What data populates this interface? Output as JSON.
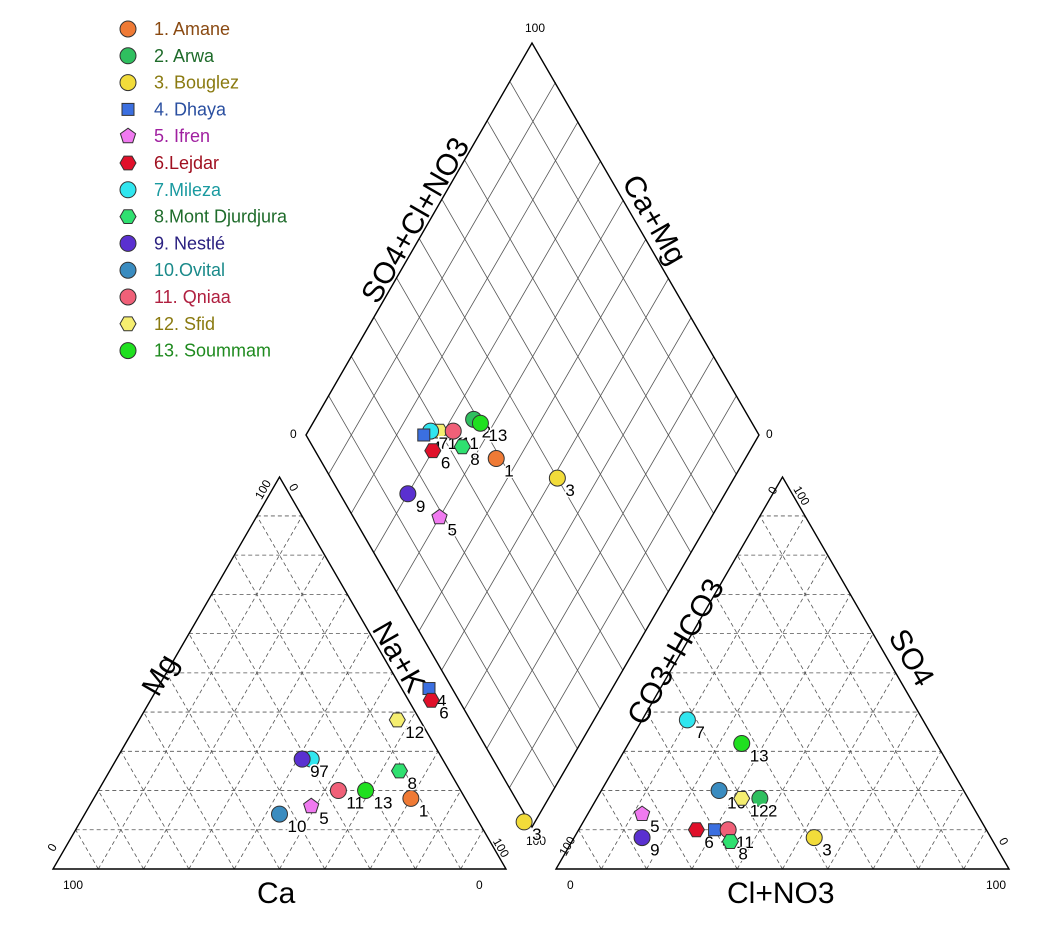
{
  "chart_data": {
    "type": "piper",
    "axis_titles": {
      "cation_bottom": "Ca",
      "cation_left": "Mg",
      "cation_right": "Na+K",
      "anion_bottom": "Cl+NO3",
      "anion_left": "CO3+HCO3",
      "anion_right": "SO4",
      "diamond_left": "SO4+Cl+NO3",
      "diamond_right": "Ca+Mg"
    },
    "tick_labels": {
      "max": "100",
      "min": "0"
    },
    "legend": [
      {
        "label": "1. Amane",
        "marker": "circle",
        "color": "#ef7a35",
        "text_color": "#8a4a12"
      },
      {
        "label": "2. Arwa",
        "marker": "circle",
        "color": "#2fbf5f",
        "text_color": "#1e6b2a"
      },
      {
        "label": "3. Bouglez",
        "marker": "circle",
        "color": "#f2dc3a",
        "text_color": "#8a7a10"
      },
      {
        "label": "4. Dhaya",
        "marker": "square",
        "color": "#3b6fe0",
        "text_color": "#2a4fa0"
      },
      {
        "label": "5. Ifren",
        "marker": "pentagon",
        "color": "#f07af0",
        "text_color": "#a020a0"
      },
      {
        "label": "6.Lejdar",
        "marker": "hexagon",
        "color": "#e0102a",
        "text_color": "#a01020"
      },
      {
        "label": "7.Mileza",
        "marker": "circle",
        "color": "#30e6ef",
        "text_color": "#1a9aa0"
      },
      {
        "label": "8.Mont Djurdjura",
        "marker": "hexagon",
        "color": "#2fe070",
        "text_color": "#1e6b2a"
      },
      {
        "label": "9. Nestlé",
        "marker": "circle",
        "color": "#5a30d0",
        "text_color": "#2a2080"
      },
      {
        "label": "10.Ovital",
        "marker": "circle",
        "color": "#3a8cc0",
        "text_color": "#1a8a8a"
      },
      {
        "label": "11. Qniaa",
        "marker": "circle",
        "color": "#f06078",
        "text_color": "#b02040"
      },
      {
        "label": "12. Sfid",
        "marker": "hexagon",
        "color": "#f5ee70",
        "text_color": "#8a7a10"
      },
      {
        "label": "13. Soummam",
        "marker": "circle",
        "color": "#20e020",
        "text_color": "#1e8a1e"
      }
    ],
    "cation_points": [
      {
        "label": "1",
        "Ca": 30,
        "Mg": 18,
        "NaK": 52
      },
      {
        "label": "3",
        "Ca": 2,
        "Mg": 12,
        "NaK": 86
      },
      {
        "label": "4",
        "Ca": 40,
        "Mg": 46,
        "NaK": 14
      },
      {
        "label": "6",
        "Ca": 38,
        "Mg": 43,
        "NaK": 19
      },
      {
        "label": "12",
        "Ca": 43,
        "Mg": 38,
        "NaK": 19
      },
      {
        "label": "7",
        "Ca": 57,
        "Mg": 28,
        "NaK": 15
      },
      {
        "label": "9",
        "Ca": 59,
        "Mg": 28,
        "NaK": 13
      },
      {
        "label": "8",
        "Ca": 36,
        "Mg": 25,
        "NaK": 39
      },
      {
        "label": "11",
        "Ca": 47,
        "Mg": 20,
        "NaK": 33
      },
      {
        "label": "13",
        "Ca": 41,
        "Mg": 20,
        "NaK": 39
      },
      {
        "label": "10",
        "Ca": 57,
        "Mg": 14,
        "NaK": 29
      },
      {
        "label": "5",
        "Ca": 51,
        "Mg": 16,
        "NaK": 33
      }
    ],
    "anion_points": [
      {
        "label": "7",
        "Cl": 10,
        "SO4": 38,
        "HCO3": 52
      },
      {
        "label": "13",
        "Cl": 25,
        "SO4": 32,
        "HCO3": 43
      },
      {
        "label": "10",
        "Cl": 26,
        "SO4": 20,
        "HCO3": 54
      },
      {
        "label": "2",
        "Cl": 36,
        "SO4": 18,
        "HCO3": 46
      },
      {
        "label": "12",
        "Cl": 32,
        "SO4": 18,
        "HCO3": 50
      },
      {
        "label": "5",
        "Cl": 12,
        "SO4": 14,
        "HCO3": 74
      },
      {
        "label": "9",
        "Cl": 15,
        "SO4": 8,
        "HCO3": 77
      },
      {
        "label": "6",
        "Cl": 26,
        "SO4": 10,
        "HCO3": 64
      },
      {
        "label": "4",
        "Cl": 30,
        "SO4": 10,
        "HCO3": 60
      },
      {
        "label": "11",
        "Cl": 33,
        "SO4": 10,
        "HCO3": 57
      },
      {
        "label": "8",
        "Cl": 35,
        "SO4": 7,
        "HCO3": 58
      },
      {
        "label": "3",
        "Cl": 53,
        "SO4": 8,
        "HCO3": 39
      }
    ],
    "diamond_points": [
      {
        "label": "12",
        "SO4ClNO3": 71,
        "CaMg": 70
      },
      {
        "label": "7",
        "SO4ClNO3": 73,
        "CaMg": 72
      },
      {
        "label": "2",
        "SO4ClNO3": 65,
        "CaMg": 61
      },
      {
        "label": "13",
        "SO4ClNO3": 63,
        "CaMg": 60
      },
      {
        "label": "11",
        "SO4ClNO3": 68,
        "CaMg": 67
      },
      {
        "label": "4",
        "SO4ClNO3": 74,
        "CaMg": 74
      },
      {
        "label": "6",
        "SO4ClNO3": 70,
        "CaMg": 74
      },
      {
        "label": "8",
        "SO4ClNO3": 64,
        "CaMg": 67
      },
      {
        "label": "1",
        "SO4ClNO3": 55,
        "CaMg": 61
      },
      {
        "label": "9",
        "SO4ClNO3": 70,
        "CaMg": 85
      },
      {
        "label": "5",
        "SO4ClNO3": 60,
        "CaMg": 81
      },
      {
        "label": "3",
        "SO4ClNO3": 39,
        "CaMg": 50
      }
    ]
  }
}
